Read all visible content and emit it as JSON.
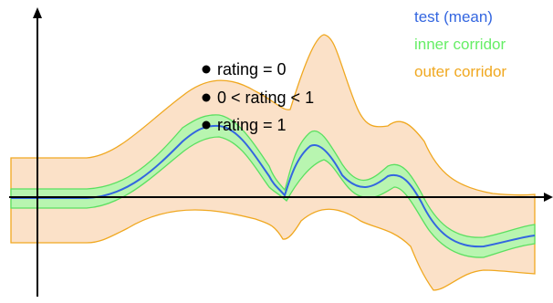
{
  "legend": {
    "mean_label": "test (mean)",
    "inner_label": "inner corridor",
    "outer_label": "outer corridor"
  },
  "annotations": {
    "rating_zero": "rating = 0",
    "rating_between": "0 < rating < 1",
    "rating_one": "rating = 1"
  },
  "colors": {
    "mean": "#3366e0",
    "inner_fill": "#b8f5b0",
    "inner_stroke": "#5ae060",
    "outer_fill": "#fbe1c8",
    "outer_stroke": "#f0a820",
    "inner_text": "#66ee66",
    "outer_text": "#f0a820",
    "axis": "#000000"
  }
}
